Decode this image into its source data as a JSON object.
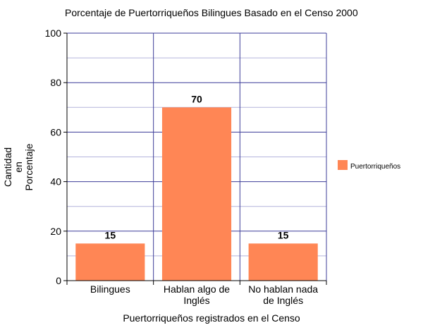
{
  "chart_data": {
    "type": "bar",
    "title": "Porcentaje de Puertorriqueños Bilingues Basado en el Censo 2000",
    "xlabel": "Puertorriqueños registrados en el Censo",
    "ylabel_lines": [
      "Cantidad",
      "en",
      "Porcentaje"
    ],
    "categories": [
      [
        "Bilingues"
      ],
      [
        "Hablan algo de",
        "Inglés"
      ],
      [
        "No hablan nada",
        "de Inglés"
      ]
    ],
    "series": [
      {
        "name": "Puertorriqueños",
        "values": [
          15,
          70,
          15
        ],
        "color": "#ff8655"
      }
    ],
    "ylim": [
      0,
      100
    ],
    "y_ticks": [
      0,
      20,
      40,
      60,
      80,
      100
    ],
    "y_minor_step": 10,
    "grid": true,
    "legend": "right",
    "data_labels": true,
    "colors": {
      "grid_major": "#3c3c98",
      "grid_minor": "#b4b4dc",
      "axis": "#000000"
    }
  }
}
